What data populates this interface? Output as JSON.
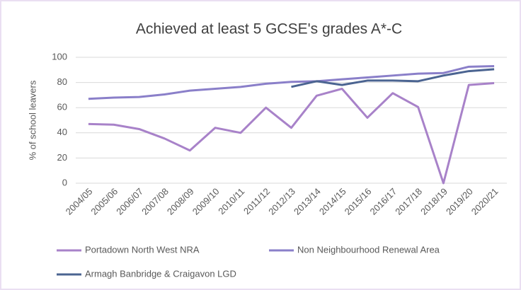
{
  "chart_data": {
    "type": "line",
    "title": "Achieved at least 5 GCSE's grades A*-C",
    "y_label": "% of school leavers",
    "categories": [
      "2004/05",
      "2005/06",
      "2006/07",
      "2007/08",
      "2008/09",
      "2009/10",
      "2010/11",
      "2011/12",
      "2012/13",
      "2013/14",
      "2014/15",
      "2015/16",
      "2016/17",
      "2017/18",
      "2018/19",
      "2019/20",
      "2020/21"
    ],
    "series": [
      {
        "name": "Portadown North West NRA",
        "color": "#a882c9",
        "values": [
          47,
          46.5,
          43,
          35.5,
          26,
          44,
          40,
          60,
          44,
          69.5,
          75,
          52,
          71.5,
          60.5,
          0,
          78,
          79.5
        ]
      },
      {
        "name": "Non Neighbourhood Renewal Area",
        "color": "#8a7fc9",
        "values": [
          67,
          68,
          68.5,
          70.5,
          73.5,
          75,
          76.5,
          79,
          80.5,
          81,
          82.5,
          84,
          85.5,
          87,
          87.5,
          92.5,
          93
        ]
      },
      {
        "name": "Armagh Banbridge & Craigavon LGD",
        "color": "#4b6491",
        "values": [
          null,
          null,
          null,
          null,
          null,
          null,
          null,
          null,
          76.5,
          81,
          78,
          81.5,
          81.5,
          81,
          85.5,
          89,
          90.5
        ]
      }
    ],
    "ylim": [
      0,
      100
    ],
    "yticks": [
      0,
      20,
      40,
      60,
      80,
      100
    ],
    "grid": true,
    "legend": "bottom"
  }
}
